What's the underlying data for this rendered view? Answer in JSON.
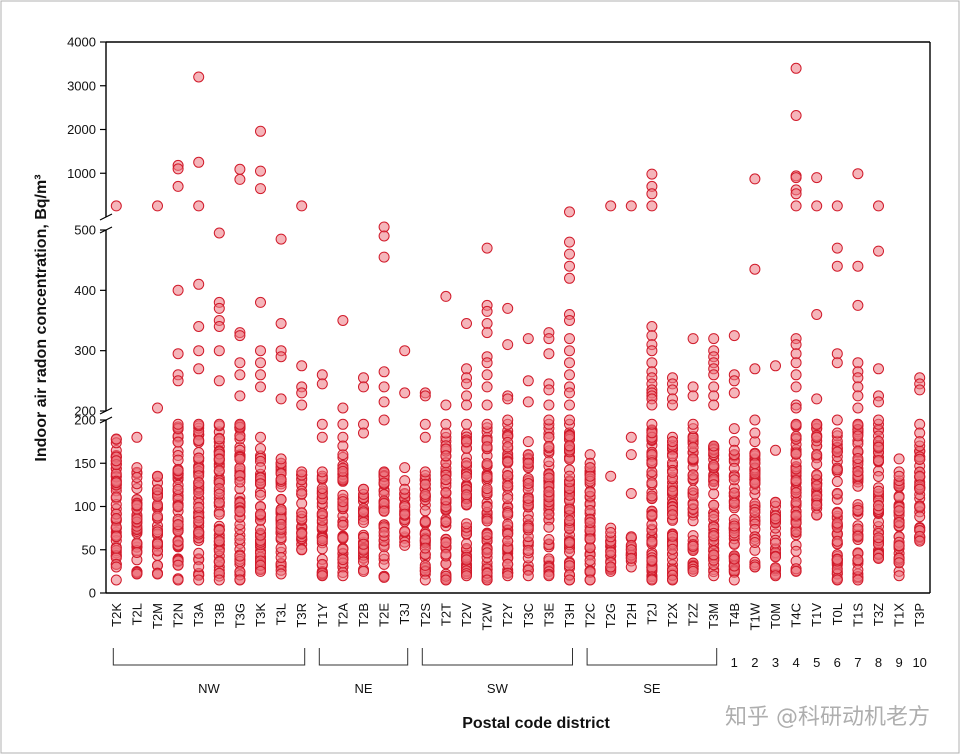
{
  "chart_data": {
    "type": "scatter",
    "ylabel": "Indoor air radon concentration, Bq/m³",
    "xlabel": "Postal code district",
    "y_axis": {
      "broken": true,
      "lower_ticks": [
        0,
        50,
        100,
        150,
        200
      ],
      "middle_ticks": [
        200,
        300,
        400,
        500
      ],
      "upper_ticks": [
        1000,
        2000,
        3000,
        4000
      ]
    },
    "categories": [
      "T2K",
      "T2L",
      "T2M",
      "T2N",
      "T3A",
      "T3B",
      "T3G",
      "T3K",
      "T3L",
      "T3R",
      "T1Y",
      "T2A",
      "T2B",
      "T2E",
      "T3J",
      "T2S",
      "T2T",
      "T2V",
      "T2W",
      "T2Y",
      "T3C",
      "T3E",
      "T3H",
      "T2C",
      "T2G",
      "T2H",
      "T2J",
      "T2X",
      "T2Z",
      "T3M",
      "T4B",
      "T1W",
      "T0M",
      "T4C",
      "T1V",
      "T0L",
      "T1S",
      "T3Z",
      "T1X",
      "T3P"
    ],
    "groups": [
      {
        "label": "NW",
        "from": 0,
        "to": 9
      },
      {
        "label": "NE",
        "from": 10,
        "to": 14
      },
      {
        "label": "SW",
        "from": 15,
        "to": 22
      },
      {
        "label": "SE",
        "from": 23,
        "to": 29
      }
    ],
    "numbered_labels": [
      "1",
      "2",
      "3",
      "4",
      "5",
      "6",
      "7",
      "8",
      "9",
      "10"
    ],
    "numbered_from": 30,
    "outliers": [
      [
        540
      ],
      [
        180
      ],
      [
        540,
        205
      ],
      [
        1180,
        1100,
        700,
        400,
        295,
        260,
        250
      ],
      [
        3200,
        1250,
        540,
        410,
        340,
        300,
        270
      ],
      [
        495,
        380,
        370,
        350,
        340,
        300,
        250
      ],
      [
        1090,
        860,
        330,
        325,
        280,
        260,
        225
      ],
      [
        1960,
        1050,
        650,
        380,
        300,
        280,
        260,
        240
      ],
      [
        485,
        345,
        300,
        290,
        220
      ],
      [
        540,
        275,
        240,
        230,
        210
      ],
      [
        260,
        245,
        195,
        180
      ],
      [
        350,
        205,
        195,
        180,
        170
      ],
      [
        255,
        240,
        195,
        185
      ],
      [
        505,
        490,
        455,
        265,
        240,
        215,
        200
      ],
      [
        300,
        230,
        145,
        130,
        120
      ],
      [
        230,
        225,
        195,
        180
      ],
      [
        390,
        210,
        195
      ],
      [
        345,
        270,
        255,
        245,
        225,
        210
      ],
      [
        470,
        375,
        365,
        345,
        330,
        290,
        280,
        260,
        240,
        210
      ],
      [
        370,
        310,
        225,
        220,
        200
      ],
      [
        320,
        250,
        215,
        175,
        150
      ],
      [
        330,
        320,
        295,
        245,
        235,
        210,
        200
      ],
      [
        530,
        480,
        460,
        440,
        420,
        360,
        350,
        320,
        300,
        280,
        260,
        240,
        230,
        210,
        200
      ],
      [
        160,
        150,
        145,
        135
      ],
      [
        540,
        135,
        75,
        70,
        35,
        30
      ],
      [
        540,
        180,
        160,
        115,
        55,
        50,
        40
      ],
      [
        980,
        700,
        560,
        540,
        340,
        325,
        310,
        300,
        280,
        265,
        255,
        245,
        235,
        230,
        225,
        220,
        210
      ],
      [
        255,
        245,
        235,
        220,
        210,
        175
      ],
      [
        320,
        240,
        225,
        195
      ],
      [
        320,
        300,
        290,
        280,
        270,
        260,
        240,
        225,
        210
      ],
      [
        325,
        260,
        250,
        230,
        190,
        175,
        165
      ],
      [
        870,
        435,
        270,
        200,
        185
      ],
      [
        275,
        165
      ],
      [
        3400,
        2320,
        940,
        900,
        620,
        560,
        540,
        320,
        310,
        295,
        280,
        260,
        240,
        210,
        205
      ],
      [
        900,
        540,
        360,
        220,
        195,
        180
      ],
      [
        540,
        470,
        440,
        295,
        280,
        200
      ],
      [
        990,
        440,
        375,
        280,
        265,
        255,
        240,
        225,
        205
      ],
      [
        540,
        465,
        270,
        225,
        215,
        200
      ],
      [
        155,
        140,
        135,
        95,
        40,
        35,
        20
      ],
      [
        255,
        245,
        235,
        195,
        185,
        175,
        135,
        125,
        120
      ]
    ],
    "bulk_range": [
      [
        15,
        178
      ],
      [
        22,
        145
      ],
      [
        22,
        135
      ],
      [
        15,
        195
      ],
      [
        15,
        195
      ],
      [
        15,
        195
      ],
      [
        15,
        195
      ],
      [
        25,
        180
      ],
      [
        22,
        155
      ],
      [
        50,
        140
      ],
      [
        20,
        140
      ],
      [
        20,
        160
      ],
      [
        25,
        120
      ],
      [
        18,
        140
      ],
      [
        55,
        115
      ],
      [
        15,
        140
      ],
      [
        15,
        185
      ],
      [
        20,
        195
      ],
      [
        15,
        195
      ],
      [
        20,
        195
      ],
      [
        20,
        160
      ],
      [
        20,
        195
      ],
      [
        15,
        195
      ],
      [
        15,
        145
      ],
      [
        25,
        65
      ],
      [
        30,
        65
      ],
      [
        15,
        195
      ],
      [
        15,
        180
      ],
      [
        25,
        190
      ],
      [
        20,
        170
      ],
      [
        15,
        160
      ],
      [
        30,
        175
      ],
      [
        20,
        105
      ],
      [
        25,
        195
      ],
      [
        90,
        195
      ],
      [
        15,
        185
      ],
      [
        15,
        195
      ],
      [
        40,
        195
      ],
      [
        25,
        130
      ],
      [
        60,
        170
      ]
    ]
  },
  "watermark": "知乎 @科研动机老方"
}
